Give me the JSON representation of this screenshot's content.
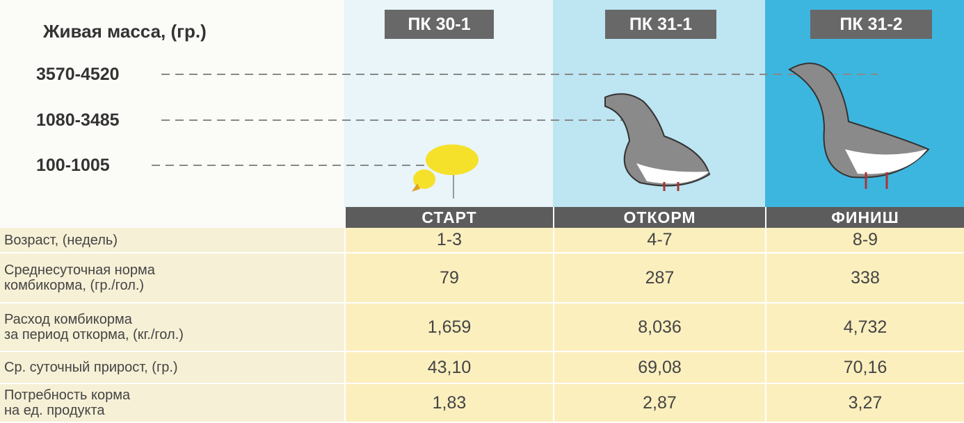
{
  "weight": {
    "title": "Живая масса, (гр.)",
    "levels": [
      "3570-4520",
      "1080-3485",
      "100-1005"
    ]
  },
  "columns": [
    {
      "code": "ПК 30-1",
      "stage": "СТАРТ"
    },
    {
      "code": "ПК 31-1",
      "stage": "ОТКОРМ"
    },
    {
      "code": "ПК 31-2",
      "stage": "ФИНИШ"
    }
  ],
  "table": {
    "rows": [
      {
        "label": [
          "Возраст, (недель)"
        ],
        "values": [
          "1-3",
          "4-7",
          "8-9"
        ]
      },
      {
        "label": [
          "Среднесуточная норма",
          "комбикорма, (гр./гол.)"
        ],
        "values": [
          "79",
          "287",
          "338"
        ]
      },
      {
        "label": [
          "Расход комбикорма",
          "за период откорма, (кг./гол.)"
        ],
        "values": [
          "1,659",
          "8,036",
          "4,732"
        ]
      },
      {
        "label": [
          "Ср. суточный прирост, (гр.)"
        ],
        "values": [
          "43,10",
          "69,08",
          "70,16"
        ]
      },
      {
        "label": [
          "Потребность корма",
          "на ед. продукта"
        ],
        "values": [
          "1,83",
          "2,87",
          "3,27"
        ]
      }
    ]
  }
}
